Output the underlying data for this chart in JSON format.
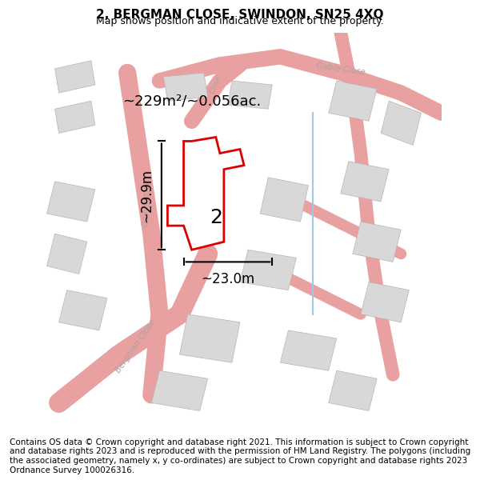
{
  "title": "2, BERGMAN CLOSE, SWINDON, SN25 4XQ",
  "subtitle": "Map shows position and indicative extent of the property.",
  "footer": "Contains OS data © Crown copyright and database right 2021. This information is subject to Crown copyright and database rights 2023 and is reproduced with the permission of HM Land Registry. The polygons (including the associated geometry, namely x, y co-ordinates) are subject to Crown copyright and database rights 2023 Ordnance Survey 100026316.",
  "area_text": "~229m²/~0.056ac.",
  "width_text": "~23.0m",
  "height_text": "~29.9m",
  "property_label": "2",
  "map_bg": "#f5f0f0",
  "road_color": "#e8a0a0",
  "building_fill": "#d8d8d8",
  "building_edge": "#c0b0b0",
  "property_fill": "#ffffff",
  "property_edge": "#dd0000",
  "title_fontsize": 11,
  "subtitle_fontsize": 9,
  "footer_fontsize": 7.5,
  "annotation_fontsize": 13,
  "label_fontsize": 12,
  "road_label_color": "#b0a0a0",
  "map_xlim": [
    0,
    1
  ],
  "map_ylim": [
    0,
    1
  ]
}
